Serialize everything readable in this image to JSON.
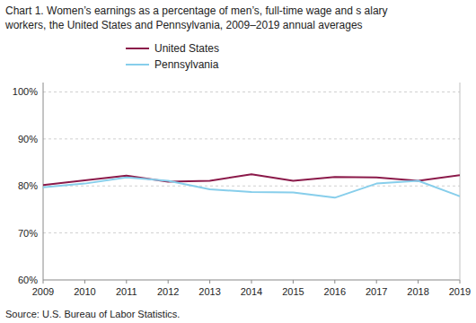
{
  "chart_data": {
    "type": "line",
    "title": "Chart 1. Women’s earnings as a percentage of men’s, full-time wage and s alary",
    "subtitle": "workers, the United States and Pennsylvania, 2009–2019 annual averages",
    "x": [
      2009,
      2010,
      2011,
      2012,
      2013,
      2014,
      2015,
      2016,
      2017,
      2018,
      2019
    ],
    "series": [
      {
        "name": "United States",
        "color": "#8B1A4A",
        "values": [
          80.2,
          81.2,
          82.2,
          80.9,
          81.1,
          82.5,
          81.1,
          81.9,
          81.8,
          81.1,
          82.3
        ]
      },
      {
        "name": "Pennsylvania",
        "color": "#87CEEB",
        "values": [
          79.7,
          80.5,
          81.8,
          81.1,
          79.3,
          78.7,
          78.6,
          77.5,
          80.5,
          81.1,
          77.8
        ]
      }
    ],
    "xlim": [
      2009,
      2019
    ],
    "xticks": [
      2009,
      2010,
      2011,
      2012,
      2013,
      2014,
      2015,
      2016,
      2017,
      2018,
      2019
    ],
    "ylim": [
      60,
      102
    ],
    "yticks": [
      {
        "value": 60,
        "label": "60%"
      },
      {
        "value": 70,
        "label": "70%"
      },
      {
        "value": 80,
        "label": "80%"
      },
      {
        "value": 90,
        "label": "90%"
      },
      {
        "value": 100,
        "label": "100%"
      }
    ],
    "grid": true,
    "legend": "top",
    "annotations": [
      "Source:  U.S. Bureau of Labor Statistics."
    ]
  }
}
